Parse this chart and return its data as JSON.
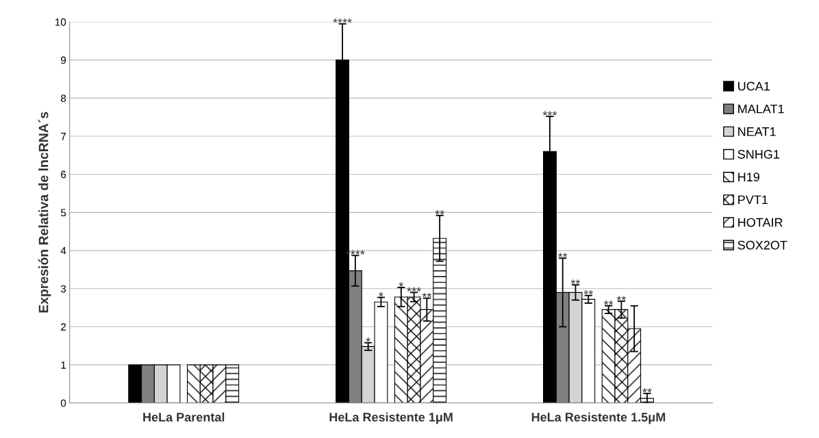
{
  "chart_data": {
    "type": "bar",
    "ylabel": "Expresión Relativa de lncRNA´s",
    "categories": [
      "HeLa Parental",
      "HeLa Resistente 1μM",
      "HeLa Resistente 1.5μM"
    ],
    "series": [
      {
        "name": "UCA1",
        "color": "#000000",
        "values": [
          1,
          9.0,
          6.6
        ],
        "errors": [
          null,
          0.95,
          0.92
        ],
        "value_labels": [
          null,
          "****",
          "***"
        ]
      },
      {
        "name": "MALAT1",
        "color": "#808080",
        "values": [
          1,
          3.47,
          2.9
        ],
        "errors": [
          null,
          0.4,
          0.9
        ],
        "value_labels": [
          null,
          "****",
          "**"
        ]
      },
      {
        "name": "NEAT1",
        "color": "#d3d3d3",
        "values": [
          1,
          1.48,
          2.9
        ],
        "errors": [
          null,
          0.1,
          0.2
        ],
        "value_labels": [
          null,
          "*",
          "**"
        ]
      },
      {
        "name": "SNHG1",
        "color": "#ffffff",
        "values": [
          1,
          2.65,
          2.72
        ],
        "errors": [
          null,
          0.12,
          0.1
        ],
        "value_labels": [
          null,
          "*",
          "**"
        ]
      },
      {
        "name": "H19",
        "color": "#ffffff",
        "values": [
          1,
          2.78,
          2.45
        ],
        "errors": [
          null,
          0.25,
          0.1
        ],
        "value_labels": [
          null,
          "*",
          "**"
        ]
      },
      {
        "name": "PVT1",
        "color": "#ffffff",
        "values": [
          1,
          2.78,
          2.45
        ],
        "errors": [
          null,
          0.12,
          0.22
        ],
        "value_labels": [
          null,
          "***",
          "**"
        ]
      },
      {
        "name": "HOTAIR",
        "color": "#ffffff",
        "values": [
          1,
          2.45,
          1.95
        ],
        "errors": [
          null,
          0.3,
          0.6
        ],
        "value_labels": [
          null,
          "**",
          null
        ]
      },
      {
        "name": "SOX2OT",
        "color": "#ffffff",
        "values": [
          1,
          4.32,
          0.12
        ],
        "errors": [
          null,
          0.6,
          0.13
        ],
        "value_labels": [
          null,
          "**",
          "**"
        ]
      }
    ],
    "ylim": [
      0,
      10
    ],
    "yticks": [
      0,
      1,
      2,
      3,
      4,
      5,
      6,
      7,
      8,
      9,
      10
    ],
    "grid": "y",
    "legend": "right"
  }
}
